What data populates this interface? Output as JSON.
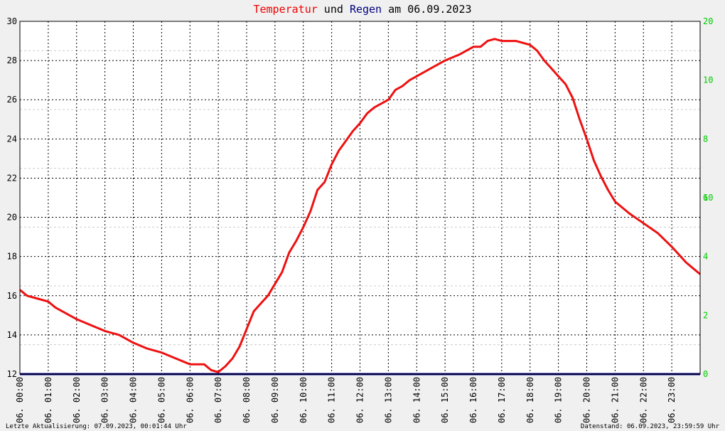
{
  "chart_data": {
    "type": "line",
    "title_parts": [
      {
        "text": "Temperatur",
        "color": "#ee0000"
      },
      {
        "text": " und ",
        "color": "#000000"
      },
      {
        "text": "Regen",
        "color": "#000080"
      },
      {
        "text": " am 06.09.2023",
        "color": "#000000"
      }
    ],
    "x_tick_labels": [
      "06. 00:00",
      "06. 01:00",
      "06. 02:00",
      "06. 03:00",
      "06. 04:00",
      "06. 05:00",
      "06. 06:00",
      "06. 07:00",
      "06. 08:00",
      "06. 09:00",
      "06. 10:00",
      "06. 11:00",
      "06. 12:00",
      "06. 13:00",
      "06. 14:00",
      "06. 15:00",
      "06. 16:00",
      "06. 17:00",
      "06. 18:00",
      "06. 19:00",
      "06. 20:00",
      "06. 21:00",
      "06. 22:00",
      "06. 23:00"
    ],
    "xlim": [
      0,
      24
    ],
    "ylim_left": [
      12,
      30
    ],
    "y_ticks_left": [
      "12",
      "14",
      "16",
      "18",
      "20",
      "22",
      "24",
      "26",
      "28",
      "30"
    ],
    "ylim_right": [
      0,
      20
    ],
    "y_ticks_right": [
      "0",
      "2",
      "4",
      "6",
      "8",
      "10",
      "10",
      "20"
    ],
    "grid": true,
    "series": [
      {
        "color": "#ee1111",
        "axis": "left",
        "x": [
          0,
          0.25,
          0.5,
          1,
          1.25,
          1.5,
          2,
          2.5,
          3,
          3.5,
          4,
          4.5,
          5,
          5.5,
          6,
          6.5,
          6.75,
          7,
          7.25,
          7.5,
          7.75,
          8,
          8.25,
          8.5,
          8.75,
          9,
          9.25,
          9.5,
          9.75,
          10,
          10.25,
          10.5,
          10.75,
          11,
          11.25,
          11.5,
          11.75,
          12,
          12.25,
          12.5,
          12.75,
          13,
          13.25,
          13.5,
          13.75,
          14,
          14.5,
          15,
          15.5,
          16,
          16.25,
          16.5,
          16.75,
          17,
          17.5,
          18,
          18.25,
          18.5,
          18.75,
          19,
          19.25,
          19.5,
          19.75,
          20,
          20.25,
          20.5,
          20.75,
          21,
          21.5,
          22,
          22.5,
          23,
          23.25,
          23.5,
          23.75,
          24
        ],
        "values": [
          16.3,
          16.0,
          15.9,
          15.7,
          15.4,
          15.2,
          14.8,
          14.5,
          14.2,
          14.0,
          13.6,
          13.3,
          13.1,
          12.8,
          12.5,
          12.5,
          12.2,
          12.1,
          12.4,
          12.8,
          13.4,
          14.3,
          15.2,
          15.6,
          16.0,
          16.6,
          17.2,
          18.2,
          18.8,
          19.5,
          20.3,
          21.4,
          21.8,
          22.7,
          23.4,
          23.9,
          24.4,
          24.8,
          25.3,
          25.6,
          25.8,
          26.0,
          26.5,
          26.7,
          27.0,
          27.2,
          27.6,
          28.0,
          28.3,
          28.7,
          28.7,
          29.0,
          29.1,
          29.0,
          29.0,
          28.8,
          28.5,
          28.0,
          27.6,
          27.2,
          26.8,
          26.1,
          25.0,
          24.0,
          22.9,
          22.1,
          21.4,
          20.8,
          20.2,
          19.7,
          19.2,
          18.5,
          18.1,
          17.7,
          17.4,
          17.1
        ]
      },
      {
        "color": "#000080",
        "axis": "right",
        "x": [
          0,
          24
        ],
        "values": [
          0,
          0
        ]
      }
    ]
  },
  "footer": {
    "left": "Letzte Aktualisierung: 07.09.2023, 00:01:44 Uhr",
    "right": "Datenstand: 06.09.2023, 23:59:59 Uhr"
  },
  "colors": {
    "background": "#f0f0f0",
    "plot_background": "#ffffff",
    "left_axis_text": "#000000",
    "right_axis_text": "#00cc00",
    "grid": "#000000",
    "minor_grid": "#cccccc"
  }
}
